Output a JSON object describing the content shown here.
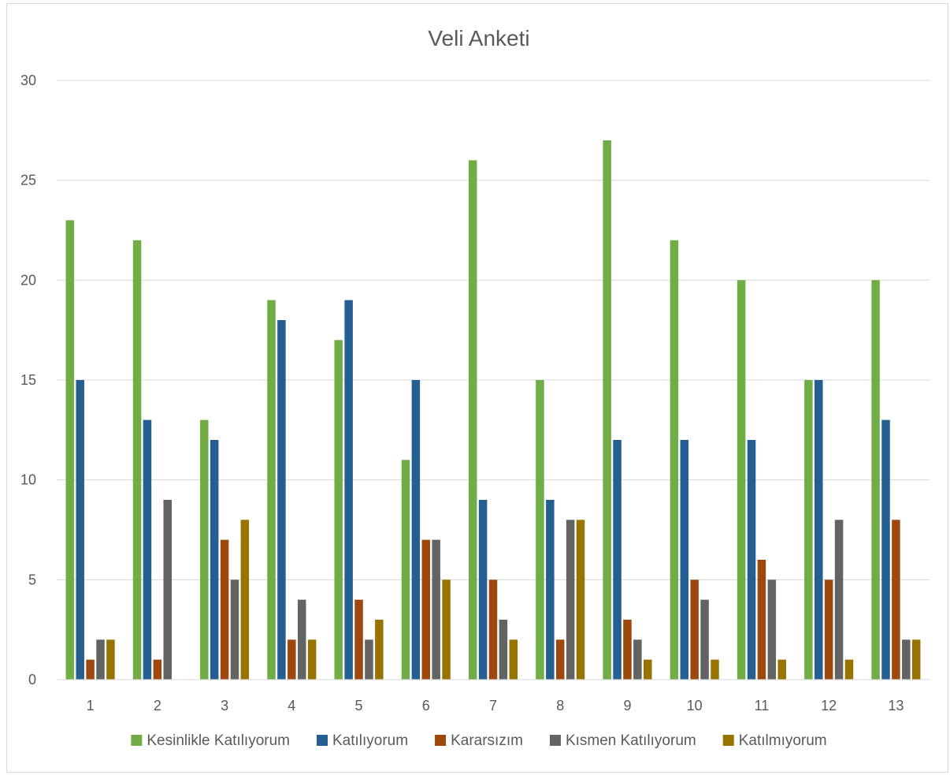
{
  "chart_data": {
    "type": "bar",
    "title": "Veli Anketi",
    "xlabel": "",
    "ylabel": "",
    "ylim": [
      0,
      30
    ],
    "yticks": [
      0,
      5,
      10,
      15,
      20,
      25,
      30
    ],
    "grid": true,
    "legend_position": "bottom",
    "categories": [
      "1",
      "2",
      "3",
      "4",
      "5",
      "6",
      "7",
      "8",
      "9",
      "10",
      "11",
      "12",
      "13"
    ],
    "series": [
      {
        "name": "Kesinlikle Katılıyorum",
        "color": "#70ad47",
        "values": [
          23,
          22,
          13,
          19,
          17,
          11,
          26,
          15,
          27,
          22,
          20,
          15,
          20
        ]
      },
      {
        "name": "Katılıyorum",
        "color": "#255e91",
        "values": [
          15,
          13,
          12,
          18,
          19,
          15,
          9,
          9,
          12,
          12,
          12,
          15,
          13
        ]
      },
      {
        "name": "Kararsızım",
        "color": "#9e480e",
        "values": [
          1,
          1,
          7,
          2,
          4,
          7,
          5,
          2,
          3,
          5,
          6,
          5,
          8
        ]
      },
      {
        "name": "Kısmen Katılıyorum",
        "color": "#636363",
        "values": [
          2,
          9,
          5,
          4,
          2,
          7,
          3,
          8,
          2,
          4,
          5,
          8,
          2
        ]
      },
      {
        "name": "Katılmıyorum",
        "color": "#997300",
        "values": [
          2,
          0,
          8,
          2,
          3,
          5,
          2,
          8,
          1,
          1,
          1,
          1,
          2
        ]
      }
    ]
  }
}
